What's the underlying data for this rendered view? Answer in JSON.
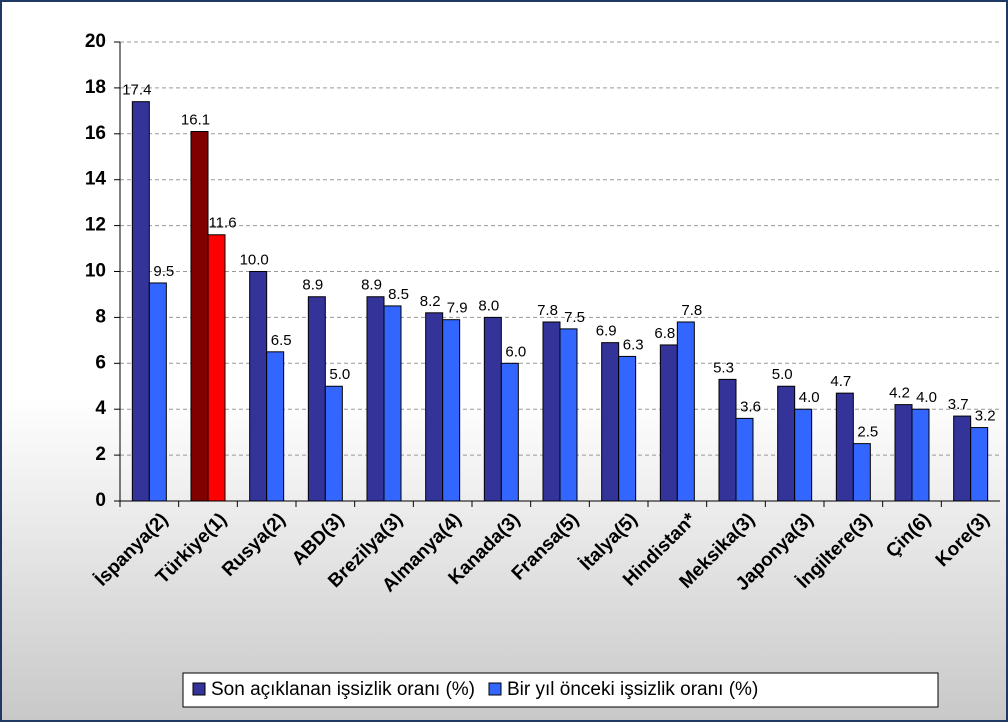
{
  "chart_data": {
    "type": "bar",
    "categories": [
      "İspanya(2)",
      "Türkiye(1)",
      "Rusya(2)",
      "ABD(3)",
      "Brezilya(3)",
      "Almanya(4)",
      "Kanada(3)",
      "Fransa(5)",
      "İtalya(5)",
      "Hindistan*",
      "Meksika(3)",
      "Japonya(3)",
      "İngiltere(3)",
      "Çin(6)",
      "Kore(3)"
    ],
    "series": [
      {
        "name": "Son açıklanan işsizlik oranı (%)",
        "color": "#333399",
        "point_colors": [
          "#333399",
          "#800000",
          "#333399",
          "#333399",
          "#333399",
          "#333399",
          "#333399",
          "#333399",
          "#333399",
          "#333399",
          "#333399",
          "#333399",
          "#333399",
          "#333399",
          "#333399"
        ],
        "values": [
          17.4,
          16.1,
          10.0,
          8.9,
          8.9,
          8.2,
          8.0,
          7.8,
          6.9,
          6.8,
          5.3,
          5.0,
          4.7,
          4.2,
          3.7
        ],
        "value_labels": [
          "17.4",
          "16.1",
          "10.0",
          "8.9",
          "8.9",
          "8.2",
          "8.0",
          "7.8",
          "6.9",
          "6.8",
          "5.3",
          "5.0",
          "4.7",
          "4.2",
          "3.7"
        ]
      },
      {
        "name": "Bir yıl önceki işsizlik oranı (%)",
        "color": "#3366ff",
        "point_colors": [
          "#3366ff",
          "#ff0000",
          "#3366ff",
          "#3366ff",
          "#3366ff",
          "#3366ff",
          "#3366ff",
          "#3366ff",
          "#3366ff",
          "#3366ff",
          "#3366ff",
          "#3366ff",
          "#3366ff",
          "#3366ff",
          "#3366ff"
        ],
        "values": [
          9.5,
          11.6,
          6.5,
          5.0,
          8.5,
          7.9,
          6.0,
          7.5,
          6.3,
          7.8,
          3.6,
          4.0,
          2.5,
          4.0,
          3.2
        ],
        "value_labels": [
          "9.5",
          "11.6",
          "6.5",
          "5.0",
          "8.5",
          "7.9",
          "6.0",
          "7.5",
          "6.3",
          "7.8",
          "3.6",
          "4.0",
          "2.5",
          "4.0",
          "3.2"
        ]
      }
    ],
    "ylim": [
      0,
      20
    ],
    "yticks": [
      0,
      2,
      4,
      6,
      8,
      10,
      12,
      14,
      16,
      18,
      20
    ],
    "grid": true,
    "legend": "bottom"
  }
}
